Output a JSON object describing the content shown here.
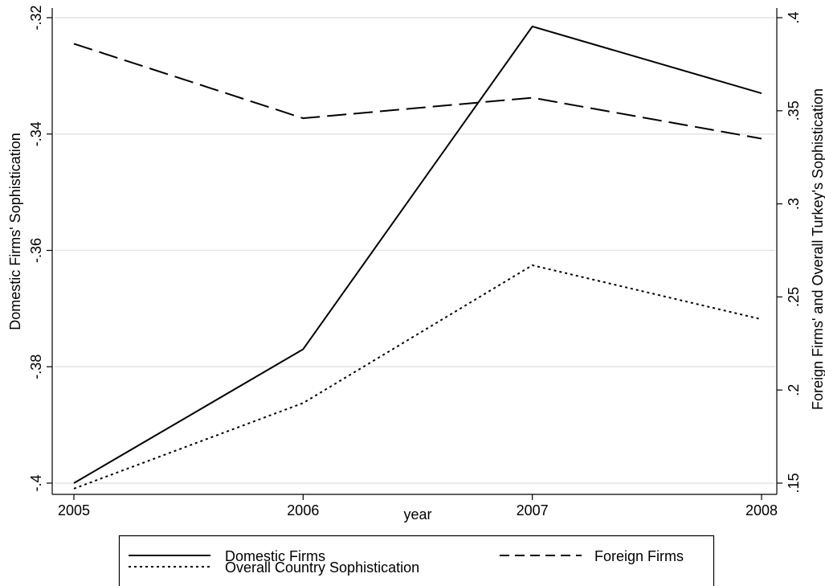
{
  "chart_data": {
    "type": "line",
    "x": [
      2005,
      2006,
      2007,
      2008
    ],
    "xlabel": "year",
    "ylabel_left": "Domestic Firms' Sophistication",
    "ylabel_right": "Foreign Firms' and Overall Turkey's Sophistication",
    "xlim": [
      2005,
      2008
    ],
    "ylim_left": [
      -0.4,
      -0.32
    ],
    "ylim_right": [
      0.15,
      0.4
    ],
    "x_ticks": [
      2005,
      2006,
      2007,
      2008
    ],
    "x_tick_labels": [
      "2005",
      "2006",
      "2007",
      "2008"
    ],
    "y_left_ticks": [
      -0.4,
      -0.38,
      -0.36,
      -0.34,
      -0.32
    ],
    "y_left_tick_labels": [
      "-.4",
      "-.38",
      "-.36",
      "-.34",
      "-.32"
    ],
    "y_right_ticks": [
      0.15,
      0.2,
      0.25,
      0.3,
      0.35,
      0.4
    ],
    "y_right_tick_labels": [
      ".15",
      ".2",
      ".25",
      ".3",
      ".35",
      ".4"
    ],
    "grid": true,
    "legend_position": "bottom",
    "series": [
      {
        "name": "Domestic Firms",
        "axis": "left",
        "dash": "solid",
        "values": [
          -0.4,
          -0.377,
          -0.3215,
          -0.333
        ]
      },
      {
        "name": "Foreign Firms",
        "axis": "right",
        "dash": "dashed",
        "values": [
          0.386,
          0.346,
          0.357,
          0.335
        ]
      },
      {
        "name": "Overall Country Sophistication",
        "axis": "right",
        "dash": "dotted",
        "values": [
          0.147,
          0.193,
          0.267,
          0.238
        ]
      }
    ]
  }
}
